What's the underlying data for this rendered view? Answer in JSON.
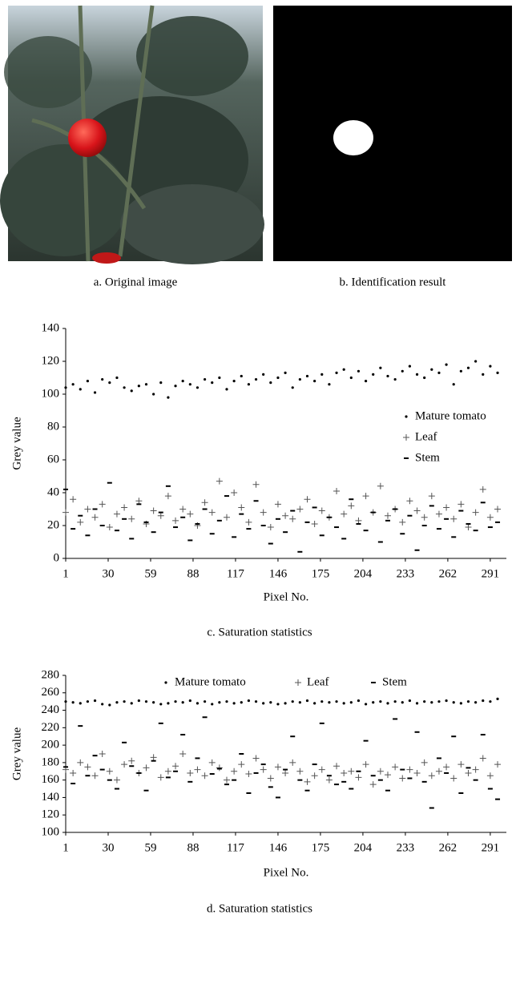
{
  "figures": [
    {
      "caption": "a. Original image"
    },
    {
      "caption": "b. Identification result"
    }
  ],
  "chart_data": [
    {
      "type": "scatter",
      "caption": "c. Saturation statistics",
      "xlabel": "Pixel No.",
      "ylabel": "Grey value",
      "xlim": [
        1,
        302
      ],
      "ylim": [
        0,
        140
      ],
      "xticks": [
        1,
        30,
        59,
        88,
        117,
        146,
        175,
        204,
        233,
        262,
        291
      ],
      "yticks": [
        0,
        20,
        40,
        60,
        80,
        100,
        120,
        140
      ],
      "legend": "right",
      "grid": false,
      "x": [
        1,
        6,
        11,
        16,
        21,
        26,
        31,
        36,
        41,
        46,
        51,
        56,
        61,
        66,
        71,
        76,
        81,
        86,
        91,
        96,
        101,
        106,
        111,
        116,
        121,
        126,
        131,
        136,
        141,
        146,
        151,
        156,
        161,
        166,
        171,
        176,
        181,
        186,
        191,
        196,
        201,
        206,
        211,
        216,
        221,
        226,
        231,
        236,
        241,
        246,
        251,
        256,
        261,
        266,
        271,
        276,
        281,
        286,
        291,
        296
      ],
      "series": [
        {
          "name": "Mature tomato",
          "color": "#000000",
          "marker": "dot",
          "values": [
            104,
            106,
            103,
            108,
            101,
            109,
            107,
            110,
            104,
            102,
            105,
            106,
            100,
            107,
            98,
            105,
            108,
            106,
            104,
            109,
            107,
            110,
            103,
            108,
            111,
            106,
            109,
            112,
            107,
            110,
            113,
            104,
            109,
            111,
            108,
            112,
            106,
            113,
            115,
            110,
            114,
            108,
            112,
            116,
            111,
            109,
            114,
            117,
            112,
            110,
            115,
            113,
            118,
            106,
            114,
            116,
            120,
            112,
            117,
            113
          ]
        },
        {
          "name": "Leaf",
          "color": "#555555",
          "marker": "plus",
          "values": [
            28,
            36,
            22,
            30,
            25,
            33,
            19,
            27,
            31,
            24,
            35,
            21,
            29,
            26,
            38,
            23,
            30,
            27,
            20,
            34,
            28,
            47,
            25,
            40,
            31,
            22,
            45,
            28,
            19,
            33,
            26,
            24,
            30,
            36,
            21,
            29,
            25,
            41,
            27,
            32,
            23,
            38,
            28,
            44,
            26,
            30,
            22,
            35,
            29,
            25,
            38,
            27,
            31,
            24,
            33,
            19,
            28,
            42,
            25,
            30
          ]
        },
        {
          "name": "Stem",
          "color": "#000000",
          "marker": "dash",
          "values": [
            42,
            18,
            26,
            14,
            30,
            20,
            46,
            17,
            24,
            12,
            33,
            22,
            16,
            28,
            44,
            19,
            25,
            11,
            21,
            30,
            15,
            23,
            38,
            13,
            27,
            18,
            35,
            20,
            9,
            24,
            16,
            29,
            4,
            22,
            31,
            14,
            25,
            19,
            12,
            36,
            21,
            17,
            28,
            10,
            23,
            30,
            15,
            26,
            5,
            20,
            32,
            18,
            24,
            13,
            29,
            21,
            17,
            34,
            19,
            22
          ]
        }
      ]
    },
    {
      "type": "scatter",
      "caption": "d. Saturation statistics",
      "xlabel": "Pixel No.",
      "ylabel": "Grey value",
      "xlim": [
        1,
        302
      ],
      "ylim": [
        100,
        280
      ],
      "xticks": [
        1,
        30,
        59,
        88,
        117,
        146,
        175,
        204,
        233,
        262,
        291
      ],
      "yticks": [
        100,
        120,
        140,
        160,
        180,
        200,
        220,
        240,
        260,
        280
      ],
      "legend": "top",
      "grid": false,
      "x": [
        1,
        6,
        11,
        16,
        21,
        26,
        31,
        36,
        41,
        46,
        51,
        56,
        61,
        66,
        71,
        76,
        81,
        86,
        91,
        96,
        101,
        106,
        111,
        116,
        121,
        126,
        131,
        136,
        141,
        146,
        151,
        156,
        161,
        166,
        171,
        176,
        181,
        186,
        191,
        196,
        201,
        206,
        211,
        216,
        221,
        226,
        231,
        236,
        241,
        246,
        251,
        256,
        261,
        266,
        271,
        276,
        281,
        286,
        291,
        296
      ],
      "series": [
        {
          "name": "Mature tomato",
          "color": "#000000",
          "marker": "dot",
          "values": [
            250,
            249,
            248,
            250,
            251,
            247,
            246,
            249,
            250,
            248,
            251,
            250,
            249,
            247,
            248,
            250,
            249,
            251,
            248,
            250,
            247,
            249,
            250,
            248,
            249,
            251,
            250,
            248,
            249,
            247,
            248,
            250,
            249,
            251,
            248,
            250,
            249,
            250,
            248,
            249,
            251,
            247,
            249,
            250,
            248,
            250,
            249,
            251,
            248,
            250,
            249,
            250,
            251,
            249,
            248,
            250,
            249,
            251,
            250,
            253
          ]
        },
        {
          "name": "Leaf",
          "color": "#555555",
          "marker": "plus",
          "values": [
            172,
            168,
            180,
            175,
            165,
            190,
            170,
            160,
            178,
            182,
            168,
            174,
            186,
            163,
            170,
            176,
            190,
            168,
            172,
            165,
            180,
            174,
            160,
            170,
            178,
            167,
            185,
            172,
            162,
            175,
            168,
            180,
            170,
            158,
            165,
            172,
            160,
            176,
            168,
            170,
            163,
            178,
            155,
            170,
            166,
            175,
            162,
            172,
            168,
            180,
            165,
            170,
            175,
            162,
            178,
            168,
            172,
            185,
            165,
            178
          ]
        },
        {
          "name": "Stem",
          "color": "#000000",
          "marker": "dash",
          "values": [
            175,
            156,
            222,
            165,
            188,
            172,
            160,
            150,
            203,
            176,
            168,
            148,
            182,
            225,
            163,
            170,
            212,
            158,
            185,
            232,
            167,
            173,
            155,
            160,
            190,
            145,
            168,
            178,
            152,
            140,
            172,
            210,
            160,
            148,
            178,
            225,
            165,
            155,
            158,
            150,
            170,
            205,
            165,
            160,
            148,
            230,
            172,
            162,
            215,
            158,
            128,
            185,
            168,
            210,
            145,
            174,
            160,
            212,
            150,
            138
          ]
        }
      ]
    }
  ]
}
